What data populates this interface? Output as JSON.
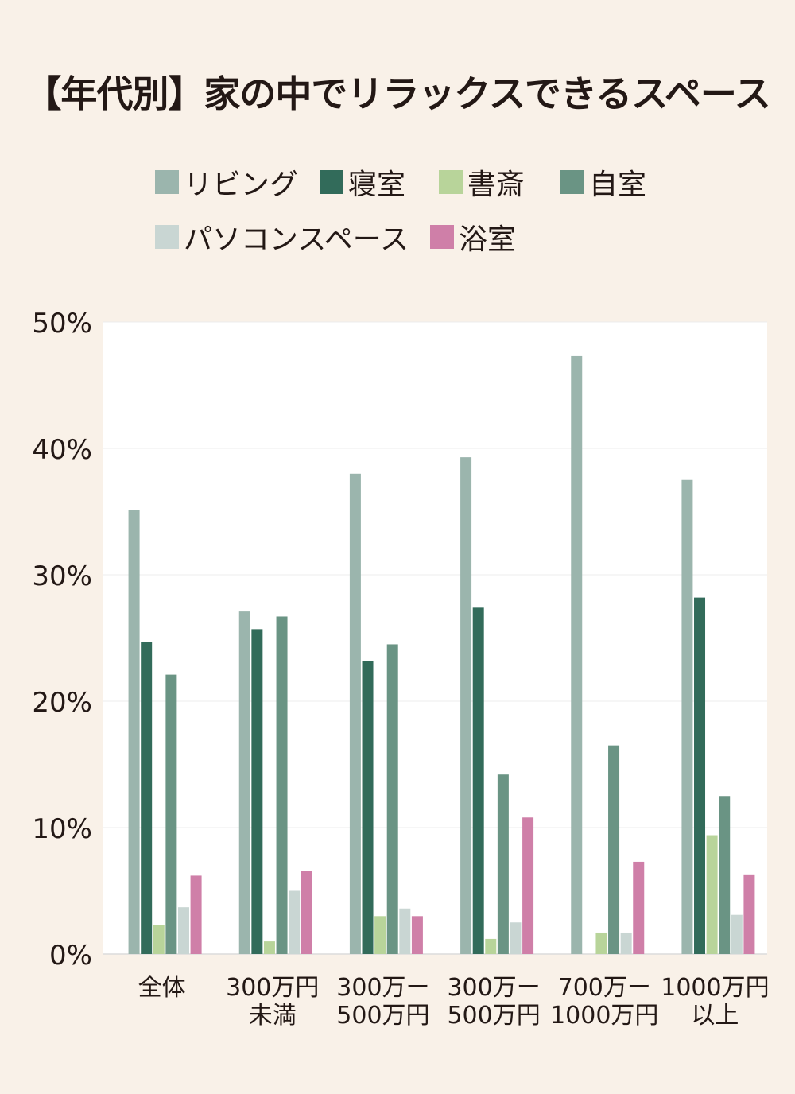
{
  "title": "【年代別】家の中でリラックスできるスペース",
  "colors": {
    "background": "#f9f1e8",
    "plot_background": "#ffffff",
    "grid": "#ececec",
    "text": "#231815"
  },
  "chart_data": {
    "type": "bar",
    "title": "【年代別】家の中でリラックスできるスペース",
    "xlabel": "",
    "ylabel": "",
    "ylim": [
      0,
      50
    ],
    "yticks": [
      0,
      10,
      20,
      30,
      40,
      50
    ],
    "ytick_labels": [
      "0%",
      "10%",
      "20%",
      "30%",
      "40%",
      "50%"
    ],
    "grid": true,
    "legend_position": "top",
    "categories": [
      [
        "全体"
      ],
      [
        "300万円",
        "未満"
      ],
      [
        "300万ー",
        "500万円"
      ],
      [
        "300万ー",
        "500万円"
      ],
      [
        "700万ー",
        "1000万円"
      ],
      [
        "1000万円",
        "以上"
      ]
    ],
    "series": [
      {
        "name": "リビング",
        "color": "#9bb5ad",
        "values": [
          35.1,
          27.1,
          38.0,
          39.3,
          47.3,
          37.5
        ]
      },
      {
        "name": "寝室",
        "color": "#326b5a",
        "values": [
          24.7,
          25.7,
          23.2,
          27.4,
          0,
          28.2
        ]
      },
      {
        "name": "書斎",
        "color": "#b8d49a",
        "values": [
          2.3,
          1.0,
          3.0,
          1.2,
          1.7,
          9.4
        ]
      },
      {
        "name": "自室",
        "color": "#6a9484",
        "values": [
          22.1,
          26.7,
          24.5,
          14.2,
          16.5,
          12.5
        ]
      },
      {
        "name": "パソコンスペース",
        "color": "#c9d6d3",
        "values": [
          3.7,
          5.0,
          3.6,
          2.5,
          1.7,
          3.1
        ]
      },
      {
        "name": "浴室",
        "color": "#cf7fa8",
        "values": [
          6.2,
          6.6,
          3.0,
          10.8,
          7.3,
          6.3
        ]
      }
    ]
  }
}
